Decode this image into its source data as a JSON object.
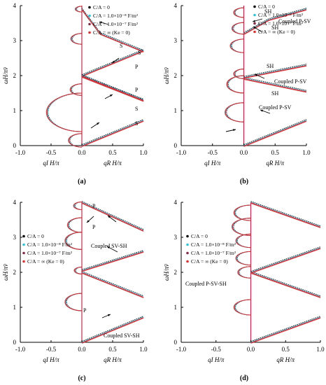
{
  "figure": {
    "panel_labels": [
      "(a)",
      "(b)",
      "(c)",
      "(d)"
    ]
  },
  "chart_data": [
    {
      "type": "line",
      "panel": "(a)",
      "ylabel": "ωH/πv̄",
      "xlabel_left": "qI H/π",
      "xlabel_right": "qR H/π",
      "x_ticks": [
        "-1.0",
        "-0.5",
        "0.0",
        "0.5",
        "1.0"
      ],
      "y_ticks": [
        "0",
        "1",
        "2",
        "3",
        "4"
      ],
      "xlim": [
        -1,
        1
      ],
      "ylim": [
        0,
        4
      ],
      "legend": [
        "C/A = 0",
        "C/A = 1.0×10⁻⁸ F/m²",
        "C/A = 1.0×10⁻⁷ F/m²",
        "C/A = ∞ (Ke = 0)"
      ],
      "legend_colors": [
        "#000000",
        "#2ec4d6",
        "#8a2a4a",
        "#e23030"
      ],
      "annotations": [
        "S",
        "S",
        "P",
        "P",
        "S",
        "S"
      ],
      "series": [
        {
          "x": [
            0,
            1
          ],
          "y": [
            0,
            0.72
          ]
        },
        {
          "x": [
            0,
            1
          ],
          "y": [
            1.98,
            1.29
          ]
        },
        {
          "x": [
            0,
            1
          ],
          "y": [
            2.0,
            2.72
          ]
        },
        {
          "x": [
            0,
            1
          ],
          "y": [
            2.0,
            1.3
          ]
        },
        {
          "x": [
            0,
            0.3,
            1
          ],
          "y": [
            3.9,
            3.2,
            2.7
          ]
        }
      ]
    },
    {
      "type": "line",
      "panel": "(b)",
      "ylabel": "ωH/πv̄",
      "xlabel_left": "qI H/π",
      "xlabel_right": "qR H/π",
      "x_ticks": [
        "-1.0",
        "-0.5",
        "0.0",
        "0.5",
        "1.0"
      ],
      "y_ticks": [
        "0",
        "1",
        "2",
        "3",
        "4"
      ],
      "xlim": [
        -1,
        1
      ],
      "ylim": [
        0,
        4
      ],
      "legend": [
        "C/A = 0",
        "C/A = 1.0×10⁻⁸ F/m²",
        "C/A = 1.0×10⁻⁷ F/m²",
        "C/A = ∞ (Ke = 0)"
      ],
      "legend_colors": [
        "#000000",
        "#2ec4d6",
        "#8a2a4a",
        "#e23030"
      ],
      "annotations": [
        "SH",
        "Coupled P-SV",
        "SH",
        "SH",
        "Coupled P-SV",
        "SH",
        "Coupled P-SV"
      ],
      "series": [
        {
          "x": [
            0,
            1
          ],
          "y": [
            0,
            0.72
          ]
        },
        {
          "x": [
            0,
            1
          ],
          "y": [
            1.92,
            1.55
          ]
        },
        {
          "x": [
            0,
            1
          ],
          "y": [
            1.95,
            2.3
          ]
        },
        {
          "x": [
            0,
            0.4,
            1
          ],
          "y": [
            3.2,
            3.6,
            3.9
          ]
        }
      ]
    },
    {
      "type": "line",
      "panel": "(c)",
      "ylabel": "ωH/πv̄",
      "xlabel_left": "qI H/π",
      "xlabel_right": "qR H/π",
      "x_ticks": [
        "-1.0",
        "-0.5",
        "0.0",
        "0.5",
        "1.0"
      ],
      "y_ticks": [
        "0",
        "1",
        "2",
        "3",
        "4"
      ],
      "xlim": [
        -1,
        1
      ],
      "ylim": [
        0,
        4
      ],
      "legend": [
        "C/A = 0",
        "C/A = 1.0×10⁻⁸ F/m²",
        "C/A = 1.0×10⁻⁷ F/m²",
        "C/A = ∞ (Ke = 0)"
      ],
      "legend_colors": [
        "#000000",
        "#2ec4d6",
        "#8a2a4a",
        "#e23030"
      ],
      "annotations": [
        "P",
        "P",
        "Coupled SV-SH",
        "P",
        "Coupled SV-SH"
      ],
      "series": [
        {
          "x": [
            0,
            1
          ],
          "y": [
            0,
            0.72
          ]
        },
        {
          "x": [
            0,
            1
          ],
          "y": [
            2.0,
            1.3
          ]
        },
        {
          "x": [
            0,
            1
          ],
          "y": [
            2.05,
            2.6
          ]
        },
        {
          "x": [
            0,
            1
          ],
          "y": [
            4.0,
            3.2
          ]
        }
      ]
    },
    {
      "type": "line",
      "panel": "(d)",
      "ylabel": "ωH/πv̄",
      "xlabel_left": "qI H/π",
      "xlabel_right": "qR H/π",
      "x_ticks": [
        "-1.0",
        "-0.5",
        "0.0",
        "0.5",
        "1.0"
      ],
      "y_ticks": [
        "0",
        "1",
        "2",
        "3",
        "4"
      ],
      "xlim": [
        -1,
        1
      ],
      "ylim": [
        0,
        4
      ],
      "legend": [
        "C/A = 0",
        "C/A = 1.0×10⁻⁸ F/m²",
        "C/A = 1.0×10⁻⁷ F/m²",
        "C/A = ∞ (Ke = 0)"
      ],
      "legend_colors": [
        "#000000",
        "#2ec4d6",
        "#8a2a4a",
        "#e23030"
      ],
      "annotations": [
        "Coupled P-SV-SH"
      ],
      "series": [
        {
          "x": [
            0,
            1
          ],
          "y": [
            0,
            0.72
          ]
        },
        {
          "x": [
            0,
            1
          ],
          "y": [
            2.0,
            1.3
          ]
        },
        {
          "x": [
            0,
            1
          ],
          "y": [
            2.0,
            2.7
          ]
        },
        {
          "x": [
            0,
            1
          ],
          "y": [
            4.0,
            3.3
          ]
        }
      ]
    }
  ]
}
